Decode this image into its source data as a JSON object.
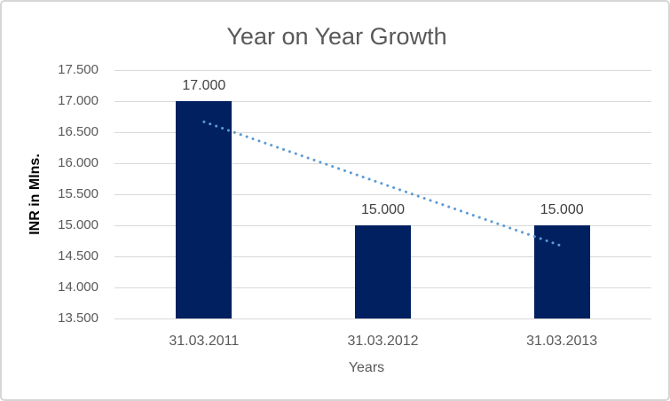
{
  "chart_data": {
    "type": "bar",
    "title": "Year on Year Growth",
    "xlabel": "Years",
    "ylabel": "INR in Mlns.",
    "categories": [
      "31.03.2011",
      "31.03.2012",
      "31.03.2013"
    ],
    "values": [
      17000,
      15000,
      15000
    ],
    "data_labels": [
      "17.000",
      "15.000",
      "15.000"
    ],
    "ylim": [
      13500,
      17500
    ],
    "ytick_step": 500,
    "yticks": [
      {
        "value": 13500,
        "label": "13.500"
      },
      {
        "value": 14000,
        "label": "14.000"
      },
      {
        "value": 14500,
        "label": "14.500"
      },
      {
        "value": 15000,
        "label": "15.000"
      },
      {
        "value": 15500,
        "label": "15.500"
      },
      {
        "value": 16000,
        "label": "16.000"
      },
      {
        "value": 16500,
        "label": "16.500"
      },
      {
        "value": 17000,
        "label": "17.000"
      },
      {
        "value": 17500,
        "label": "17.500"
      }
    ],
    "grid": true,
    "legend": "none",
    "trendline": {
      "type": "linear",
      "style": "dotted",
      "points": [
        16667,
        15667,
        14667
      ]
    },
    "colors": {
      "bar": "#002060",
      "trendline": "#5b9bd5",
      "gridline": "#d9d9d9",
      "title_text": "#595959",
      "axis_text": "#595959",
      "data_label_text": "#404040",
      "ylabel_text": "#000000",
      "background": "#ffffff",
      "border": "#d6d6d6"
    }
  }
}
